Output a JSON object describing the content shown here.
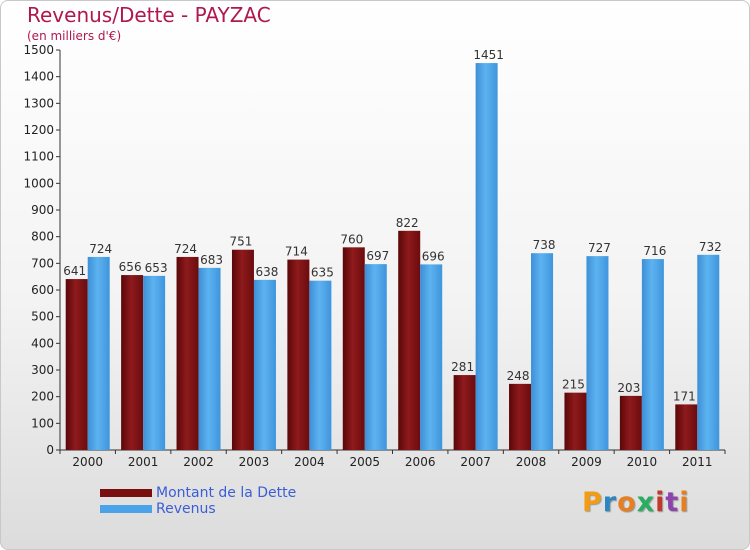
{
  "chart_data": {
    "type": "bar",
    "title": "Revenus/Dette - PAYZAC",
    "subtitle": "(en milliers d'€)",
    "categories": [
      "2000",
      "2001",
      "2002",
      "2003",
      "2004",
      "2005",
      "2006",
      "2007",
      "2008",
      "2009",
      "2010",
      "2011"
    ],
    "series": [
      {
        "name": "Montant de la Dette",
        "color": "#7a0f10",
        "values": [
          641,
          656,
          724,
          751,
          714,
          760,
          822,
          281,
          248,
          215,
          203,
          171
        ]
      },
      {
        "name": "Revenus",
        "color": "#4aa3e8",
        "values": [
          724,
          653,
          683,
          638,
          635,
          697,
          696,
          1451,
          738,
          727,
          716,
          732
        ]
      }
    ],
    "ylim": [
      0,
      1500
    ],
    "yticks": [
      0,
      100,
      200,
      300,
      400,
      500,
      600,
      700,
      800,
      900,
      1000,
      1100,
      1200,
      1300,
      1400,
      1500
    ],
    "grid": false,
    "legend": "bottom-left"
  },
  "logo": {
    "letters": [
      "P",
      "r",
      "o",
      "x",
      "i",
      "t",
      "i"
    ]
  }
}
